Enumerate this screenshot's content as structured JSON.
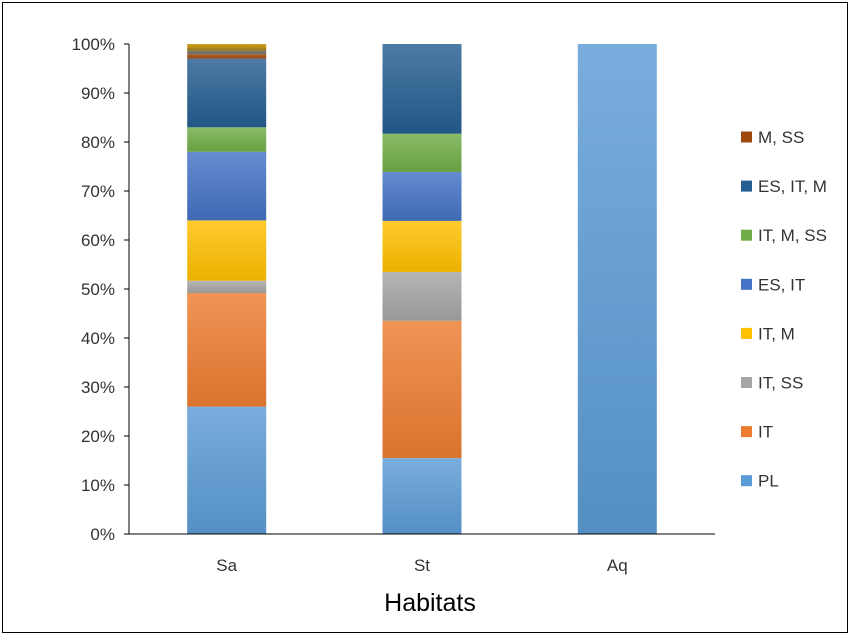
{
  "chart_data": {
    "type": "bar",
    "stacked": true,
    "normalized": true,
    "title": "",
    "xlabel": "Habitats",
    "ylabel": "",
    "ylim": [
      0,
      1
    ],
    "yticks": [
      "0%",
      "10%",
      "20%",
      "30%",
      "40%",
      "50%",
      "60%",
      "70%",
      "80%",
      "90%",
      "100%"
    ],
    "categories": [
      "Sa",
      "St",
      "Aq"
    ],
    "legend_position": "right",
    "grid": false,
    "series": [
      {
        "name": "PL",
        "color": "#5B9BD5",
        "values": [
          0.26,
          0.155,
          1.0
        ]
      },
      {
        "name": "IT",
        "color": "#ED7D31",
        "values": [
          0.232,
          0.28,
          0.0
        ]
      },
      {
        "name": "IT, SS",
        "color": "#A5A5A5",
        "values": [
          0.025,
          0.1,
          0.0
        ]
      },
      {
        "name": "IT, M",
        "color": "#FFC000",
        "values": [
          0.123,
          0.104,
          0.0
        ]
      },
      {
        "name": "ES, IT",
        "color": "#4472C4",
        "values": [
          0.14,
          0.1,
          0.0
        ]
      },
      {
        "name": "IT, M, SS",
        "color": "#70AD47",
        "values": [
          0.05,
          0.078,
          0.0
        ]
      },
      {
        "name": "ES, IT, M",
        "color": "#255E91",
        "values": [
          0.14,
          0.183,
          0.0
        ]
      },
      {
        "name": "M, SS",
        "color": "#9E480E",
        "values": [
          0.01,
          0.0,
          0.0
        ]
      },
      {
        "name": "",
        "color": "#636363",
        "values": [
          0.006,
          0.0,
          0.0
        ]
      },
      {
        "name": "",
        "color": "#997300",
        "values": [
          0.006,
          0.0,
          0.0
        ]
      },
      {
        "name": "",
        "color": "#BF9000",
        "values": [
          0.008,
          0.0,
          0.0
        ]
      }
    ],
    "legend_order": [
      "M, SS",
      "ES, IT, M",
      "IT, M, SS",
      "ES, IT",
      "IT, M",
      "IT, SS",
      "IT",
      "PL"
    ]
  }
}
